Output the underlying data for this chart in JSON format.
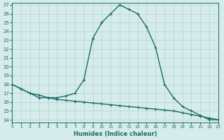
{
  "xlabel": "Humidex (Indice chaleur)",
  "ylabel": "",
  "bg_color": "#d6ecea",
  "line_color": "#1a6b6b",
  "grid_color": "#b0d4d0",
  "ylim": [
    14,
    27
  ],
  "xlim": [
    0,
    23
  ],
  "yticks": [
    14,
    15,
    16,
    17,
    18,
    19,
    20,
    21,
    22,
    23,
    24,
    25,
    26,
    27
  ],
  "xticks": [
    0,
    1,
    2,
    3,
    4,
    5,
    6,
    7,
    8,
    9,
    10,
    11,
    12,
    13,
    14,
    15,
    16,
    17,
    18,
    19,
    20,
    21,
    22,
    23
  ],
  "upper_x": [
    0,
    1,
    2,
    3,
    4,
    5,
    6,
    7,
    8,
    9,
    10,
    11,
    12,
    13,
    14,
    15,
    16,
    17,
    18,
    19,
    20,
    21,
    22,
    23
  ],
  "upper_y": [
    18.0,
    17.5,
    17.0,
    16.5,
    16.5,
    16.5,
    16.7,
    17.0,
    18.5,
    23.2,
    25.0,
    26.0,
    27.0,
    26.5,
    26.0,
    24.5,
    22.2,
    18.0,
    16.5,
    15.5,
    15.0,
    14.5,
    14.0,
    14.0
  ],
  "lower_x": [
    0,
    1,
    2,
    3,
    4,
    5,
    6,
    7,
    8,
    9,
    10,
    11,
    12,
    13,
    14,
    15,
    16,
    17,
    18,
    19,
    20,
    21,
    22,
    23
  ],
  "lower_y": [
    18.0,
    17.5,
    17.0,
    16.8,
    16.5,
    16.3,
    16.2,
    16.1,
    16.0,
    15.9,
    15.8,
    15.7,
    15.6,
    15.5,
    15.4,
    15.3,
    15.2,
    15.1,
    15.0,
    14.8,
    14.6,
    14.4,
    14.2,
    14.0
  ]
}
